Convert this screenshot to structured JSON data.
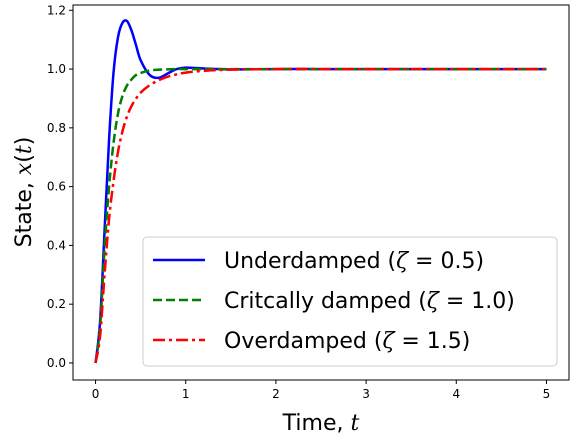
{
  "chart_data": {
    "type": "line",
    "xlabel": {
      "text": "Time, ",
      "var": "t"
    },
    "ylabel": {
      "text": "State, ",
      "var": "x",
      "arg": "t"
    },
    "xlim": [
      -0.25,
      5.25
    ],
    "ylim": [
      -0.058,
      1.218
    ],
    "xticks": [
      0,
      1,
      2,
      3,
      4,
      5
    ],
    "xtick_labels": [
      "0",
      "1",
      "2",
      "3",
      "4",
      "5"
    ],
    "yticks": [
      0.0,
      0.2,
      0.4,
      0.6,
      0.8,
      1.0,
      1.2
    ],
    "ytick_labels": [
      "0.0",
      "0.2",
      "0.4",
      "0.6",
      "0.8",
      "1.0",
      "1.2"
    ],
    "grid": false,
    "legend_position": "lower-right",
    "x": [
      0,
      0.05,
      0.1,
      0.15,
      0.2,
      0.25,
      0.3,
      0.35,
      0.4,
      0.45,
      0.5,
      0.6,
      0.7,
      0.8,
      0.9,
      1.0,
      1.2,
      1.5,
      2.0,
      2.5,
      3.0,
      4.0,
      5.0
    ],
    "series": [
      {
        "name_prefix": "Underdamped (",
        "name_var": "ζ",
        "name_value": " = 0.5)",
        "color": "#0000ff",
        "style": "solid",
        "values": [
          0.0,
          0.14,
          0.45,
          0.76,
          0.99,
          1.11,
          1.158,
          1.163,
          1.13,
          1.08,
          1.03,
          0.98,
          0.97,
          0.985,
          1.0,
          1.005,
          1.002,
          0.999,
          1.0,
          1.0,
          1.0,
          1.0,
          1.0
        ]
      },
      {
        "name_prefix": "Critcally damped (",
        "name_var": "ζ",
        "name_value": " = 1.0)",
        "color": "#008000",
        "style": "dashed",
        "values": [
          0.0,
          0.12,
          0.39,
          0.6,
          0.75,
          0.85,
          0.91,
          0.945,
          0.965,
          0.98,
          0.987,
          0.995,
          0.998,
          0.999,
          1.0,
          1.0,
          1.0,
          1.0,
          1.0,
          1.0,
          1.0,
          1.0,
          1.0
        ]
      },
      {
        "name_prefix": "Overdamped (",
        "name_var": "ζ",
        "name_value": " = 1.5)",
        "color": "#ff0000",
        "style": "dashdot",
        "values": [
          0.0,
          0.09,
          0.3,
          0.49,
          0.62,
          0.72,
          0.79,
          0.84,
          0.875,
          0.9,
          0.92,
          0.945,
          0.962,
          0.974,
          0.982,
          0.988,
          0.994,
          0.998,
          1.0,
          1.0,
          1.0,
          1.0,
          1.0
        ]
      }
    ]
  }
}
